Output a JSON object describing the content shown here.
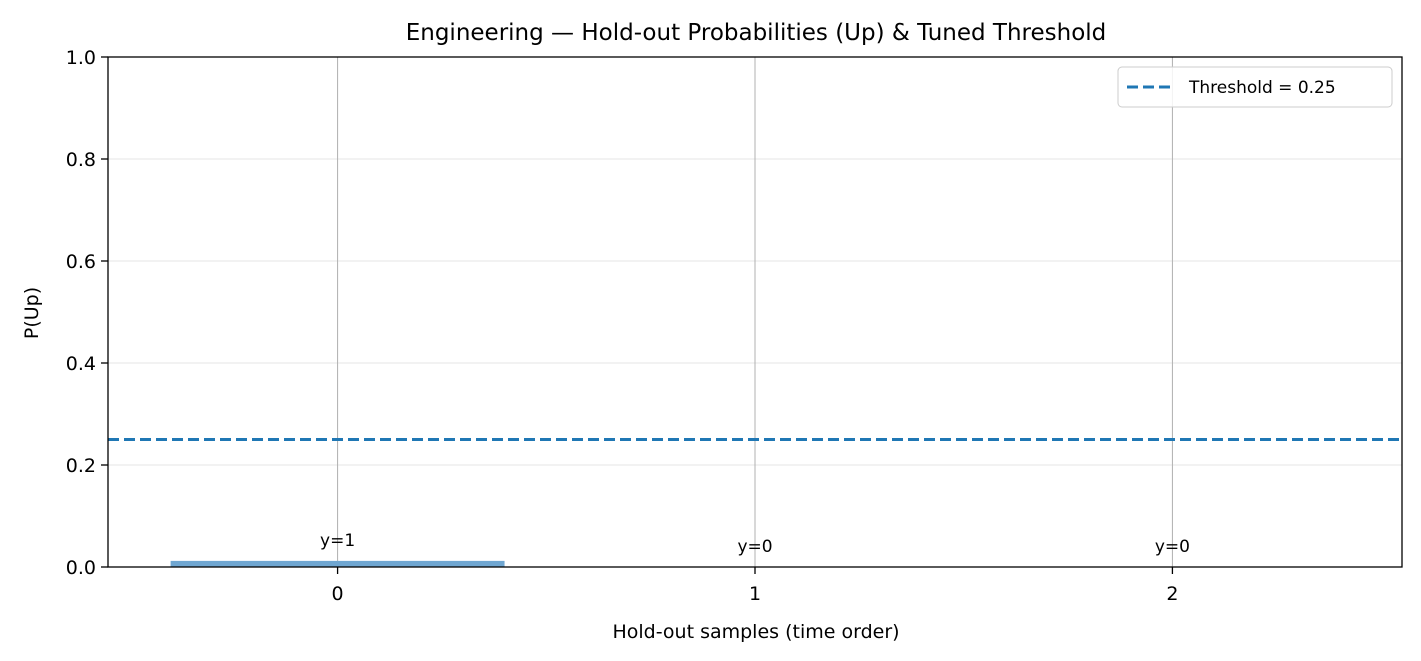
{
  "chart_data": {
    "type": "bar",
    "title": "Engineering — Hold-out Probabilities (Up) & Tuned Threshold",
    "xlabel": "Hold-out samples (time order)",
    "ylabel": "P(Up)",
    "categories": [
      "0",
      "1",
      "2"
    ],
    "values": [
      0.012,
      0.0,
      0.0
    ],
    "bar_labels": [
      "y=1",
      "y=0",
      "y=0"
    ],
    "ylim": [
      0,
      1.0
    ],
    "xlim": [
      -0.55,
      2.55
    ],
    "yticks": [
      "0.0",
      "0.2",
      "0.4",
      "0.6",
      "0.8",
      "1.0"
    ],
    "threshold": 0.25,
    "legend": {
      "placement": "top-right",
      "entries": [
        "Threshold = 0.25"
      ]
    },
    "grid": true,
    "colors": {
      "bar": "#6fa6d1",
      "threshold": "#1f77b4"
    }
  }
}
